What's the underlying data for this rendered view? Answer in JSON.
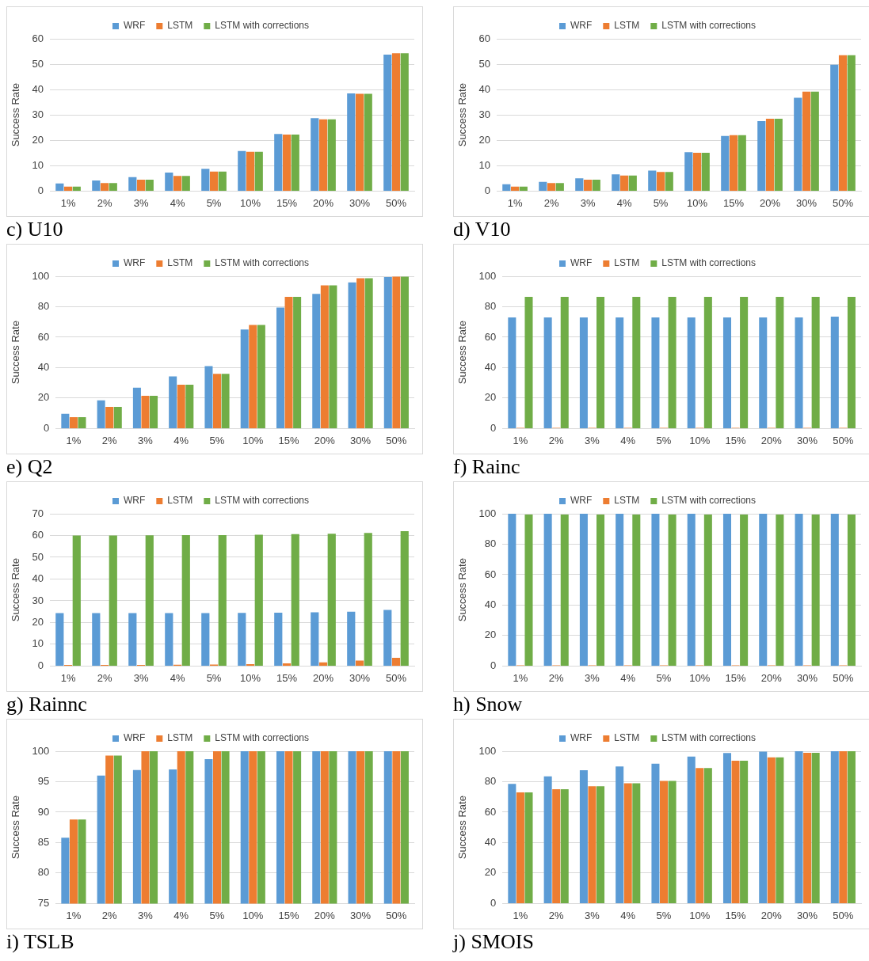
{
  "chart_data": [
    {
      "type": "bar",
      "title": "c) U10",
      "ylabel": "Success Rate",
      "categories": [
        "1%",
        "2%",
        "3%",
        "4%",
        "5%",
        "10%",
        "15%",
        "20%",
        "30%",
        "50%"
      ],
      "ylim": [
        0,
        60
      ],
      "yticks": [
        0,
        10,
        20,
        30,
        40,
        50,
        60
      ],
      "grid": "y",
      "legend": "top",
      "series": [
        {
          "name": "WRF",
          "color": "#5b9bd5",
          "values": [
            3,
            4.2,
            5.5,
            7.3,
            8.8,
            15.8,
            22.5,
            28.7,
            38.5,
            53.8
          ]
        },
        {
          "name": "LSTM",
          "color": "#ed7d31",
          "values": [
            1.8,
            3.2,
            4.5,
            6,
            7.7,
            15.5,
            22.3,
            28.3,
            38.3,
            54.3
          ]
        },
        {
          "name": "LSTM with corrections",
          "color": "#70ad47",
          "values": [
            1.8,
            3.2,
            4.5,
            6,
            7.7,
            15.5,
            22.3,
            28.3,
            38.3,
            54.3
          ]
        }
      ]
    },
    {
      "type": "bar",
      "title": "d) V10",
      "ylabel": "Success Rate",
      "categories": [
        "1%",
        "2%",
        "3%",
        "4%",
        "5%",
        "10%",
        "15%",
        "20%",
        "30%",
        "50%"
      ],
      "ylim": [
        0,
        60
      ],
      "yticks": [
        0,
        10,
        20,
        30,
        40,
        50,
        60
      ],
      "grid": "y",
      "legend": "top",
      "series": [
        {
          "name": "WRF",
          "color": "#5b9bd5",
          "values": [
            2.7,
            3.6,
            5,
            6.6,
            8.1,
            15.3,
            21.7,
            27.6,
            36.8,
            49.8
          ]
        },
        {
          "name": "LSTM",
          "color": "#ed7d31",
          "values": [
            1.8,
            3.2,
            4.5,
            6.1,
            7.5,
            15.1,
            22,
            28.5,
            39.2,
            53.5
          ]
        },
        {
          "name": "LSTM with corrections",
          "color": "#70ad47",
          "values": [
            1.8,
            3.2,
            4.5,
            6.1,
            7.5,
            15.1,
            22,
            28.5,
            39.2,
            53.5
          ]
        }
      ]
    },
    {
      "type": "bar",
      "title": "e) Q2",
      "ylabel": "Success Rate",
      "categories": [
        "1%",
        "2%",
        "3%",
        "4%",
        "5%",
        "10%",
        "15%",
        "20%",
        "30%",
        "50%"
      ],
      "ylim": [
        0,
        100
      ],
      "yticks": [
        0,
        20,
        40,
        60,
        80,
        100
      ],
      "grid": "y",
      "legend": "top",
      "series": [
        {
          "name": "WRF",
          "color": "#5b9bd5",
          "values": [
            9.7,
            18.5,
            26.8,
            34.2,
            41,
            65,
            79.5,
            88.5,
            96,
            99.5
          ]
        },
        {
          "name": "LSTM",
          "color": "#ed7d31",
          "values": [
            7.5,
            14.3,
            21.5,
            28.8,
            36,
            68,
            86.5,
            94,
            98.7,
            99.8
          ]
        },
        {
          "name": "LSTM with corrections",
          "color": "#70ad47",
          "values": [
            7.5,
            14.3,
            21.5,
            28.8,
            36,
            68,
            86.5,
            94,
            98.7,
            99.8
          ]
        }
      ]
    },
    {
      "type": "bar",
      "title": "f) Rainc",
      "ylabel": "Success Rate",
      "categories": [
        "1%",
        "2%",
        "3%",
        "4%",
        "5%",
        "10%",
        "15%",
        "20%",
        "30%",
        "50%"
      ],
      "ylim": [
        0,
        100
      ],
      "yticks": [
        0,
        20,
        40,
        60,
        80,
        100
      ],
      "grid": "y",
      "legend": "top",
      "series": [
        {
          "name": "WRF",
          "color": "#5b9bd5",
          "values": [
            73,
            73,
            73,
            73,
            73,
            73,
            73,
            73,
            73,
            73.5
          ]
        },
        {
          "name": "LSTM",
          "color": "#ed7d31",
          "values": [
            0.5,
            0.5,
            0.5,
            0.5,
            0.5,
            0.5,
            0.5,
            0.5,
            0.5,
            0.5
          ]
        },
        {
          "name": "LSTM with corrections",
          "color": "#70ad47",
          "values": [
            86.5,
            86.5,
            86.5,
            86.5,
            86.5,
            86.5,
            86.5,
            86.5,
            86.5,
            86.5
          ]
        }
      ]
    },
    {
      "type": "bar",
      "title": "g) Rainnc",
      "ylabel": "Success Rate",
      "categories": [
        "1%",
        "2%",
        "3%",
        "4%",
        "5%",
        "10%",
        "15%",
        "20%",
        "30%",
        "50%"
      ],
      "ylim": [
        0,
        70
      ],
      "yticks": [
        0,
        10,
        20,
        30,
        40,
        50,
        60,
        70
      ],
      "grid": "y",
      "legend": "top",
      "series": [
        {
          "name": "WRF",
          "color": "#5b9bd5",
          "values": [
            24.3,
            24.3,
            24.3,
            24.3,
            24.3,
            24.4,
            24.5,
            24.7,
            25,
            25.8
          ]
        },
        {
          "name": "LSTM",
          "color": "#ed7d31",
          "values": [
            0.5,
            0.5,
            0.5,
            0.6,
            0.7,
            0.9,
            1.2,
            1.7,
            2.5,
            3.8
          ]
        },
        {
          "name": "LSTM with corrections",
          "color": "#70ad47",
          "values": [
            60,
            60,
            60.1,
            60.2,
            60.2,
            60.4,
            60.6,
            60.8,
            61.2,
            62
          ]
        }
      ]
    },
    {
      "type": "bar",
      "title": "h) Snow",
      "ylabel": "Success Rate",
      "categories": [
        "1%",
        "2%",
        "3%",
        "4%",
        "5%",
        "10%",
        "15%",
        "20%",
        "30%",
        "50%"
      ],
      "ylim": [
        0,
        100
      ],
      "yticks": [
        0,
        20,
        40,
        60,
        80,
        100
      ],
      "grid": "y",
      "legend": "top",
      "series": [
        {
          "name": "WRF",
          "color": "#5b9bd5",
          "values": [
            100,
            100,
            100,
            100,
            100,
            100,
            100,
            100,
            100,
            100
          ]
        },
        {
          "name": "LSTM",
          "color": "#ed7d31",
          "values": [
            0.5,
            0.5,
            0.5,
            0.5,
            0.5,
            0.5,
            0.5,
            0.5,
            0.5,
            0.5
          ]
        },
        {
          "name": "LSTM with corrections",
          "color": "#70ad47",
          "values": [
            99.5,
            99.5,
            99.5,
            99.5,
            99.5,
            99.5,
            99.5,
            99.5,
            99.5,
            99.5
          ]
        }
      ]
    },
    {
      "type": "bar",
      "title": "i) TSLB",
      "ylabel": "Success Rate",
      "categories": [
        "1%",
        "2%",
        "3%",
        "4%",
        "5%",
        "10%",
        "15%",
        "20%",
        "30%",
        "50%"
      ],
      "ylim": [
        75,
        100
      ],
      "yticks": [
        75,
        80,
        85,
        90,
        95,
        100
      ],
      "grid": "y",
      "legend": "top",
      "series": [
        {
          "name": "WRF",
          "color": "#5b9bd5",
          "values": [
            85.8,
            96,
            96.9,
            97,
            98.7,
            100,
            100,
            100,
            100,
            100
          ]
        },
        {
          "name": "LSTM",
          "color": "#ed7d31",
          "values": [
            88.8,
            99.3,
            100,
            100,
            100,
            100,
            100,
            100,
            100,
            100
          ]
        },
        {
          "name": "LSTM with corrections",
          "color": "#70ad47",
          "values": [
            88.8,
            99.3,
            100,
            100,
            100,
            100,
            100,
            100,
            100,
            100
          ]
        }
      ]
    },
    {
      "type": "bar",
      "title": "j) SMOIS",
      "ylabel": "Success Rate",
      "categories": [
        "1%",
        "2%",
        "3%",
        "4%",
        "5%",
        "10%",
        "15%",
        "20%",
        "30%",
        "50%"
      ],
      "ylim": [
        0,
        100
      ],
      "yticks": [
        0,
        20,
        40,
        60,
        80,
        100
      ],
      "grid": "y",
      "legend": "top",
      "series": [
        {
          "name": "WRF",
          "color": "#5b9bd5",
          "values": [
            78.5,
            83.5,
            87.5,
            90,
            91.8,
            96.5,
            98.8,
            99.8,
            100,
            100
          ]
        },
        {
          "name": "LSTM",
          "color": "#ed7d31",
          "values": [
            73,
            75,
            77,
            79,
            80.5,
            89,
            93.8,
            96,
            99,
            100
          ]
        },
        {
          "name": "LSTM with corrections",
          "color": "#70ad47",
          "values": [
            73,
            75,
            77,
            79,
            80.5,
            89,
            93.8,
            96,
            99,
            100
          ]
        }
      ]
    }
  ]
}
